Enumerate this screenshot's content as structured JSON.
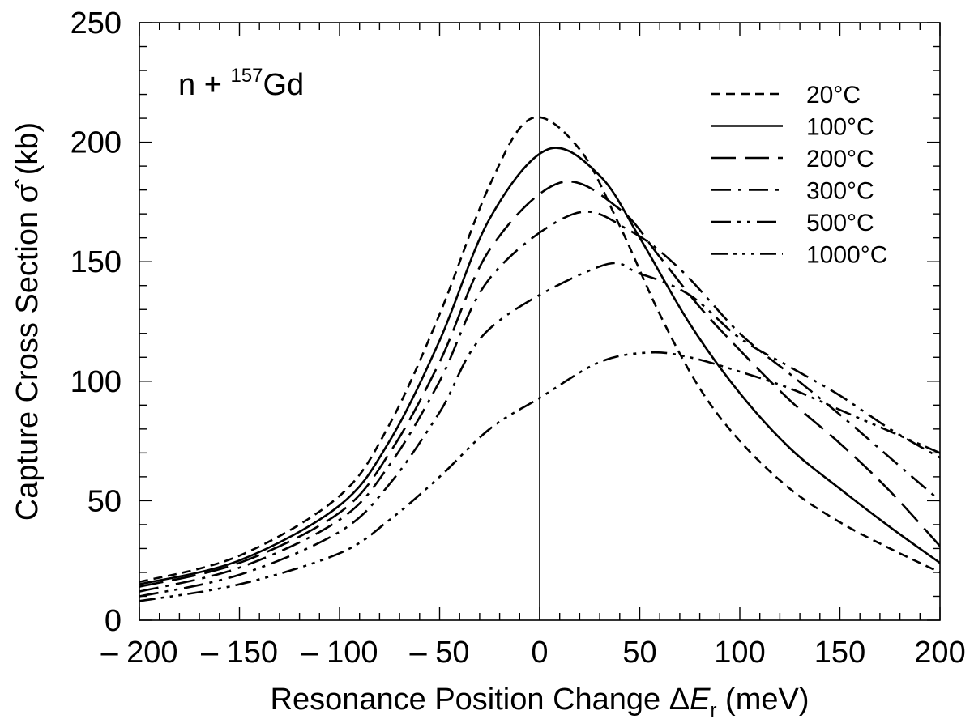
{
  "chart_data": {
    "type": "line",
    "annotation": {
      "prefix": "n + ",
      "sup": "157",
      "suffix": "Gd"
    },
    "xlabel": {
      "main": "Resonance Position Change ",
      "delta": "Δ",
      "var": "E",
      "sub": "r",
      "unit": " (meV)"
    },
    "ylabel": {
      "main": "Capture Cross Section ",
      "sym": "σ̂",
      "unit": " (kb)"
    },
    "xlim": [
      -200,
      200
    ],
    "ylim": [
      0,
      250
    ],
    "x_ticks": [
      -200,
      -150,
      -100,
      -50,
      0,
      50,
      100,
      150,
      200
    ],
    "x_tick_labels": [
      "– 200",
      "– 150",
      "– 100",
      "– 50",
      "0",
      "50",
      "100",
      "150",
      "200"
    ],
    "y_ticks": [
      0,
      50,
      100,
      150,
      200,
      250
    ],
    "y_tick_labels": [
      "0",
      "50",
      "100",
      "150",
      "200",
      "250"
    ],
    "vertical_line_x": 0,
    "legend_position": "top-right",
    "series": [
      {
        "name": "20°C",
        "dash": "short-dash",
        "points": [
          [
            -200,
            16
          ],
          [
            -150,
            27
          ],
          [
            -100,
            52
          ],
          [
            -75,
            82
          ],
          [
            -50,
            128
          ],
          [
            -25,
            182
          ],
          [
            -4,
            210
          ],
          [
            20,
            197
          ],
          [
            40,
            165
          ],
          [
            60,
            128
          ],
          [
            80,
            97
          ],
          [
            100,
            75
          ],
          [
            125,
            55
          ],
          [
            150,
            41
          ],
          [
            175,
            30
          ],
          [
            200,
            20
          ]
        ]
      },
      {
        "name": "100°C",
        "dash": "solid",
        "points": [
          [
            -200,
            15
          ],
          [
            -150,
            25
          ],
          [
            -100,
            48
          ],
          [
            -75,
            75
          ],
          [
            -50,
            117
          ],
          [
            -25,
            168
          ],
          [
            4,
            197
          ],
          [
            30,
            186
          ],
          [
            50,
            160
          ],
          [
            75,
            124
          ],
          [
            100,
            95
          ],
          [
            125,
            72
          ],
          [
            150,
            55
          ],
          [
            175,
            39
          ],
          [
            200,
            24
          ]
        ]
      },
      {
        "name": "200°C",
        "dash": "long-dash",
        "points": [
          [
            -200,
            14
          ],
          [
            -150,
            24
          ],
          [
            -100,
            45
          ],
          [
            -75,
            70
          ],
          [
            -50,
            108
          ],
          [
            -25,
            155
          ],
          [
            10,
            183
          ],
          [
            40,
            172
          ],
          [
            60,
            152
          ],
          [
            80,
            131
          ],
          [
            100,
            113
          ],
          [
            125,
            92
          ],
          [
            150,
            74
          ],
          [
            175,
            54
          ],
          [
            200,
            31
          ]
        ]
      },
      {
        "name": "300°C",
        "dash": "dash-dot",
        "points": [
          [
            -200,
            12
          ],
          [
            -150,
            22
          ],
          [
            -100,
            42
          ],
          [
            -75,
            65
          ],
          [
            -50,
            100
          ],
          [
            -25,
            143
          ],
          [
            17,
            170
          ],
          [
            45,
            163
          ],
          [
            70,
            147
          ],
          [
            100,
            120
          ],
          [
            125,
            103
          ],
          [
            150,
            86
          ],
          [
            175,
            68
          ],
          [
            200,
            50
          ]
        ]
      },
      {
        "name": "500°C",
        "dash": "dash-dot-dot",
        "points": [
          [
            -200,
            10
          ],
          [
            -150,
            19
          ],
          [
            -100,
            37
          ],
          [
            -75,
            57
          ],
          [
            -50,
            87
          ],
          [
            -25,
            122
          ],
          [
            30,
            148
          ],
          [
            50,
            145
          ],
          [
            75,
            136
          ],
          [
            100,
            118
          ],
          [
            125,
            106
          ],
          [
            150,
            94
          ],
          [
            175,
            80
          ],
          [
            200,
            68
          ]
        ]
      },
      {
        "name": "1000°C",
        "dash": "dash-dot-dot-dot",
        "points": [
          [
            -200,
            8
          ],
          [
            -150,
            15
          ],
          [
            -100,
            28
          ],
          [
            -75,
            42
          ],
          [
            -50,
            60
          ],
          [
            -25,
            80
          ],
          [
            0,
            93
          ],
          [
            30,
            108
          ],
          [
            55,
            112
          ],
          [
            75,
            110
          ],
          [
            100,
            104
          ],
          [
            125,
            97
          ],
          [
            150,
            88
          ],
          [
            175,
            79
          ],
          [
            200,
            70
          ]
        ]
      }
    ]
  }
}
